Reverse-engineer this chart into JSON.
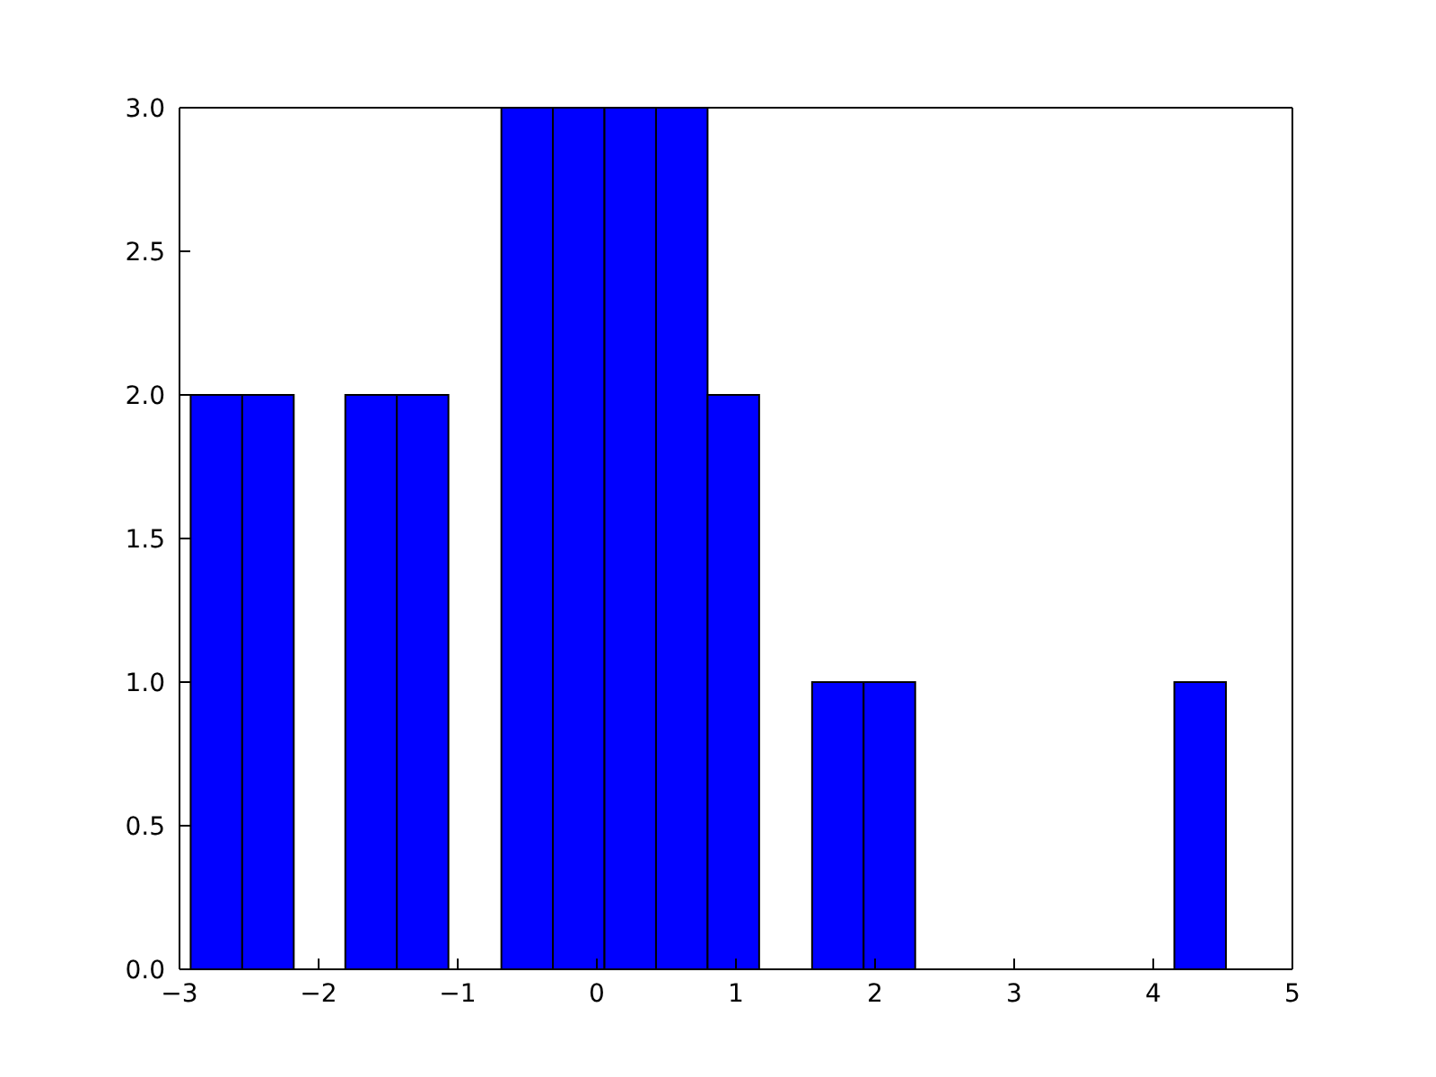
{
  "chart_data": {
    "type": "histogram",
    "color": "#0000ff",
    "bins": [
      -2.92,
      -2.55,
      -2.18,
      -1.81,
      -1.44,
      -1.07,
      -0.69,
      -0.32,
      0.05,
      0.42,
      0.79,
      1.16,
      1.54,
      1.91,
      2.28,
      4.14,
      4.51
    ],
    "values": [
      2,
      2,
      0,
      2,
      2,
      0,
      3,
      3,
      3,
      3,
      2,
      0,
      1,
      1,
      0,
      1
    ],
    "xlim": [
      -3,
      5
    ],
    "xticks": [
      {
        "value": -3,
        "label": "−3"
      },
      {
        "value": -2,
        "label": "−2"
      },
      {
        "value": -1,
        "label": "−1"
      },
      0,
      1,
      2,
      3,
      4,
      5
    ],
    "ylim": [
      0,
      3
    ],
    "yticks": [
      {
        "value": 0,
        "label": "0.0"
      },
      {
        "value": 0.5,
        "label": "0.5"
      },
      {
        "value": 1,
        "label": "1.0"
      },
      {
        "value": 1.5,
        "label": "1.5"
      },
      {
        "value": 2,
        "label": "2.0"
      },
      {
        "value": 2.5,
        "label": "2.5"
      },
      {
        "value": 3,
        "label": "3.0"
      }
    ],
    "grid": false
  }
}
